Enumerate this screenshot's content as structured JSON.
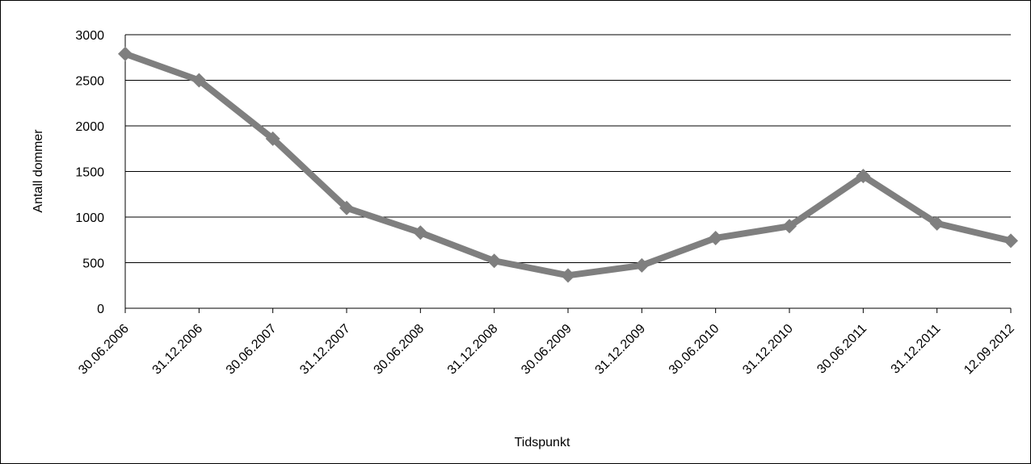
{
  "chart_data": {
    "type": "line",
    "title": "",
    "xlabel": "Tidspunkt",
    "ylabel": "Antall dommer",
    "ylim": [
      0,
      3000
    ],
    "yticks": [
      "0",
      "500",
      "1000",
      "1500",
      "2000",
      "2500",
      "3000"
    ],
    "grid": true,
    "categories": [
      "30.06.2006",
      "31.12.2006",
      "30.06.2007",
      "31.12.2007",
      "30.06.2008",
      "31.12.2008",
      "30.06.2009",
      "31.12.2009",
      "30.06.2010",
      "31.12.2010",
      "30.06.2011",
      "31.12.2011",
      "12.09.2012"
    ],
    "series": [
      {
        "values": [
          2790,
          2500,
          1860,
          1100,
          830,
          520,
          360,
          470,
          770,
          900,
          1450,
          930,
          740
        ]
      }
    ],
    "colors": {
      "line": "#7f7f7f",
      "grid": "#000000"
    }
  }
}
